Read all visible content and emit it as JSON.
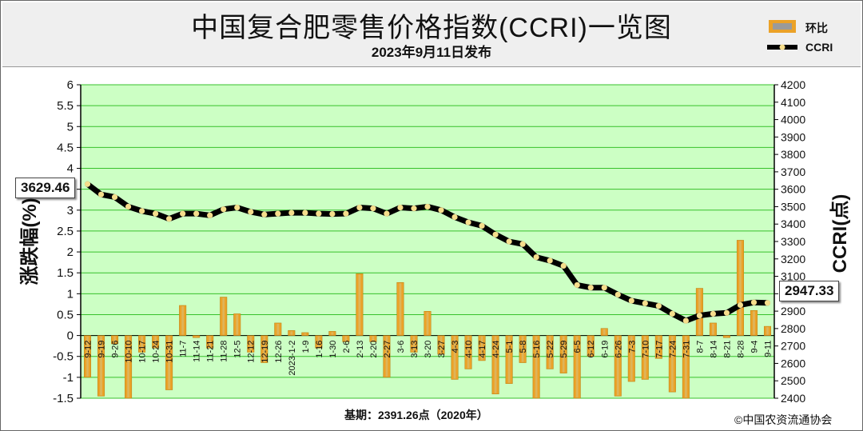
{
  "header": {
    "title": "中国复合肥零售价格指数(CCRI)一览图",
    "subtitle": "2023年9月11日发布"
  },
  "legend": {
    "bar_label": "环比",
    "line_label": "CCRI"
  },
  "footer": {
    "base_note": "基期：2391.26点（2020年）",
    "copyright": "©中国农资流通协会"
  },
  "callouts": {
    "first": "3629.46",
    "last": "2947.33"
  },
  "colors": {
    "plot_background": "#ccffc4",
    "gridline": "#37c12b",
    "bar": "#eba228",
    "line": "#000000",
    "marker": "#f5dd8c"
  },
  "chart_data": {
    "type": "bar+line",
    "title": "中国复合肥零售价格指数(CCRI)一览图",
    "subtitle": "2023年9月11日发布",
    "ylabel_left": "涨跌幅(%)",
    "ylabel_right": "CCRI(点)",
    "ylim_left": [
      -1.5,
      6
    ],
    "yticks_left": [
      "-1.5",
      "-1",
      "-0.5",
      "0",
      "0.5",
      "1",
      "1.5",
      "2",
      "2.5",
      "3",
      "3.5",
      "4",
      "4.5",
      "5",
      "5.5",
      "6"
    ],
    "ylim_right": [
      2400,
      4200
    ],
    "yticks_right": [
      "2400",
      "2500",
      "2600",
      "2700",
      "2800",
      "2900",
      "3000",
      "3100",
      "3200",
      "3300",
      "3400",
      "3500",
      "3600",
      "3700",
      "3800",
      "3900",
      "4000",
      "4100",
      "4200"
    ],
    "grid": true,
    "legend_position": "top-right",
    "categories": [
      "9-12",
      "9-19",
      "9-26",
      "10-10",
      "10-17",
      "10-24",
      "10-31",
      "11-7",
      "11-14",
      "11-21",
      "11-28",
      "12-5",
      "12-12",
      "12-19",
      "12-26",
      "2023-1-2",
      "1-9",
      "1-16",
      "1-30",
      "2-6",
      "2-13",
      "2-20",
      "2-27",
      "3-6",
      "3-13",
      "3-20",
      "3-27",
      "4-3",
      "4-10",
      "4-17",
      "4-24",
      "5-1",
      "5-8",
      "5-16",
      "5-22",
      "5-29",
      "6-5",
      "6-12",
      "6-19",
      "6-26",
      "7-3",
      "7-10",
      "7-17",
      "7-24",
      "7-31",
      "8-7",
      "8-14",
      "8-21",
      "8-28",
      "9-4",
      "9-11"
    ],
    "series": [
      {
        "name": "环比",
        "type": "bar",
        "axis": "left",
        "values": [
          -1.0,
          -1.45,
          -0.2,
          -1.5,
          -0.4,
          -0.3,
          -1.3,
          0.72,
          -0.05,
          -0.3,
          0.92,
          0.52,
          -0.4,
          -0.65,
          0.3,
          0.12,
          0.07,
          -0.3,
          0.1,
          -0.15,
          1.48,
          -0.15,
          -1.0,
          1.27,
          -0.4,
          0.58,
          -0.45,
          -1.05,
          -0.8,
          -0.6,
          -1.4,
          -1.15,
          -0.65,
          -1.5,
          -0.8,
          -0.9,
          -1.5,
          -0.5,
          0.17,
          -1.45,
          -1.1,
          -1.05,
          -0.55,
          -1.35,
          -1.5,
          1.13,
          0.3,
          -0.05,
          2.28,
          0.6,
          0.22
        ]
      },
      {
        "name": "CCRI",
        "type": "line",
        "axis": "right",
        "values": [
          3629.46,
          3570,
          3555,
          3500,
          3475,
          3460,
          3430,
          3460,
          3460,
          3450,
          3485,
          3495,
          3470,
          3455,
          3460,
          3465,
          3465,
          3460,
          3458,
          3460,
          3495,
          3490,
          3460,
          3495,
          3490,
          3500,
          3480,
          3440,
          3410,
          3390,
          3340,
          3300,
          3285,
          3210,
          3190,
          3160,
          3050,
          3035,
          3035,
          2995,
          2960,
          2945,
          2930,
          2885,
          2845,
          2875,
          2885,
          2890,
          2935,
          2950,
          2947.33
        ]
      }
    ]
  }
}
